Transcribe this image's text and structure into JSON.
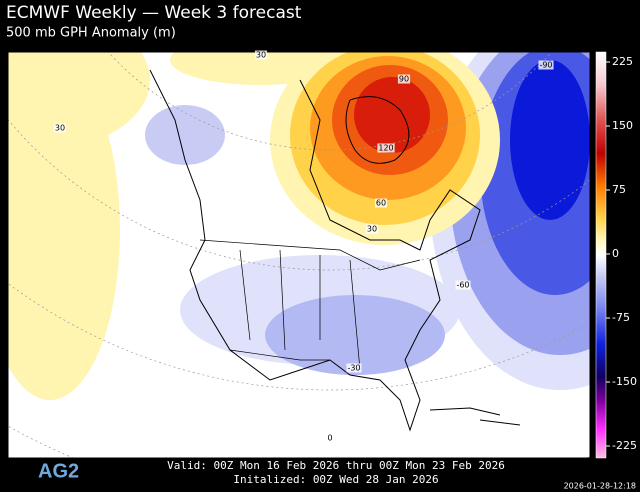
{
  "header": {
    "title": "ECMWF Weekly — Week 3 forecast",
    "subtitle": "500 mb GPH Anomaly (m)"
  },
  "colorbar": {
    "labels": [
      "225",
      "150",
      "75",
      "0",
      "-75",
      "-150",
      "-225"
    ]
  },
  "contour_labels": [
    "30",
    "30",
    "90",
    "120",
    "60",
    "30",
    "-90",
    "-60",
    "-30",
    "0"
  ],
  "footer": {
    "valid": "Valid: 00Z Mon 16 Feb 2026 thru 00Z Mon 23 Feb 2026",
    "initialized": "Initalized: 00Z Wed 28 Jan 2026",
    "logo": "AG2",
    "timestamp": "2026-01-28-12:18"
  }
}
